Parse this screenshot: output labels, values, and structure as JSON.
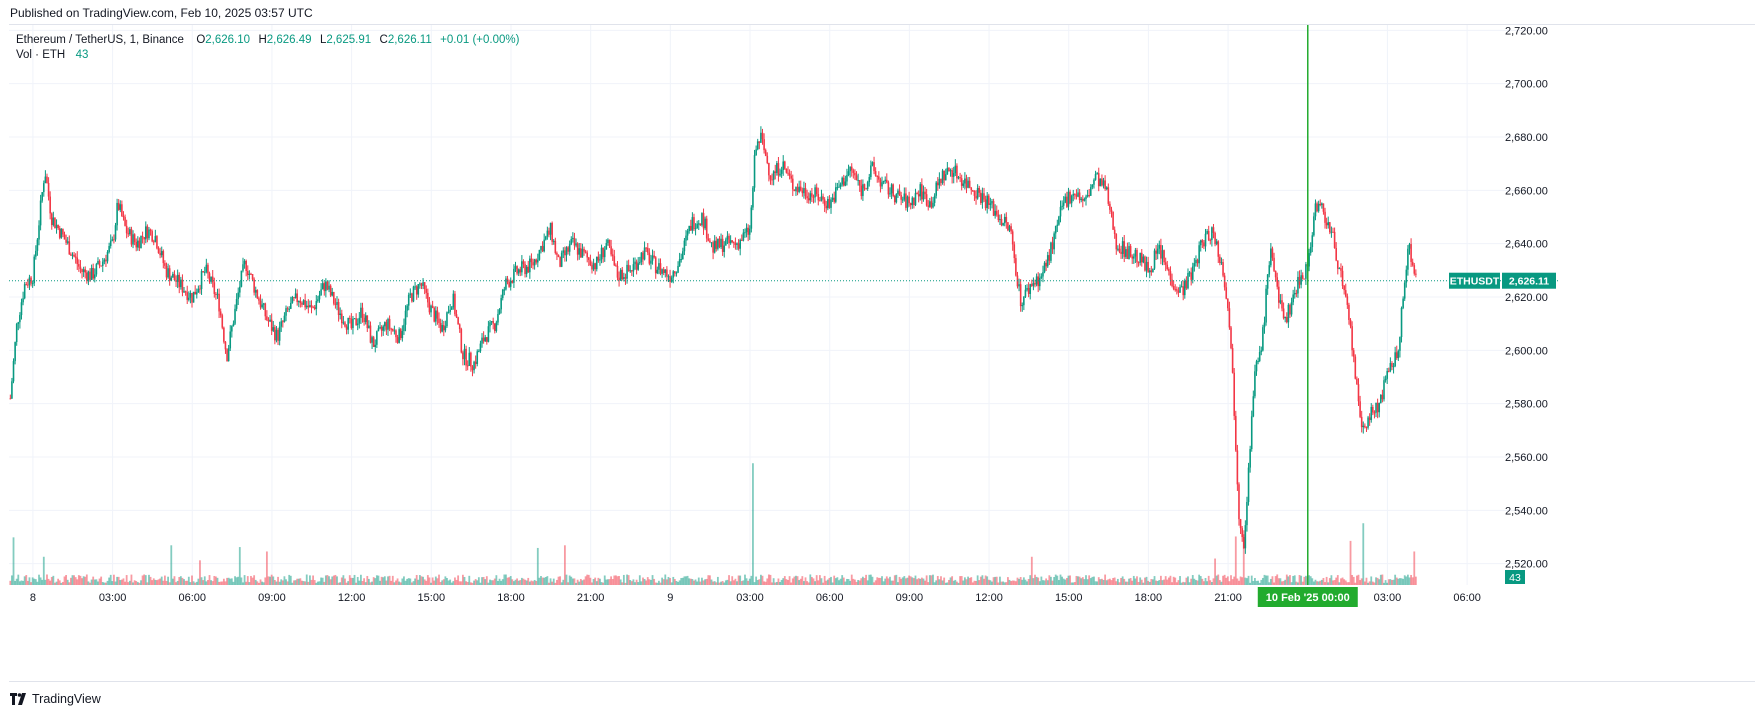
{
  "header": {
    "published": "Published on TradingView.com, Feb 10, 2025 03:57 UTC"
  },
  "legend": {
    "symbol": "Ethereum / TetherUS, 1, Binance",
    "o_label": "O",
    "o": "2,626.10",
    "h_label": "H",
    "h": "2,626.49",
    "l_label": "L",
    "l": "2,625.91",
    "c_label": "C",
    "c": "2,626.11",
    "change": "+0.01 (+0.00%)",
    "vol_label": "Vol · ETH",
    "vol_value": "43"
  },
  "price_tag": {
    "symbol": "ETHUSDT",
    "price": "2,626.11"
  },
  "volume_tag": "43",
  "crosshair_date_label": "10 Feb '25",
  "crosshair_time_label": "00:00",
  "footer": {
    "brand": "TradingView"
  },
  "colors": {
    "up": "#089981",
    "down": "#f23645",
    "crosshair": "#22ab2e",
    "grid": "#f0f3fa",
    "text": "#131722"
  },
  "chart_data": {
    "type": "candlestick",
    "symbol": "ETHUSDT",
    "interval": "1",
    "exchange": "Binance",
    "last_price": 2626.11,
    "y_ticks": [
      2520,
      2540,
      2560,
      2580,
      2600,
      2620,
      2640,
      2660,
      2680,
      2700,
      2720
    ],
    "y_tick_labels": [
      "2,520.00",
      "2,540.00",
      "2,560.00",
      "2,580.00",
      "2,600.00",
      "2,620.00",
      "2,640.00",
      "2,660.00",
      "2,680.00",
      "2,700.00",
      "2,720.00"
    ],
    "ylim": [
      2512,
      2722
    ],
    "x_ticks": [
      {
        "label": "8",
        "h": 0
      },
      {
        "label": "03:00",
        "h": 3
      },
      {
        "label": "06:00",
        "h": 6
      },
      {
        "label": "09:00",
        "h": 9
      },
      {
        "label": "12:00",
        "h": 12
      },
      {
        "label": "15:00",
        "h": 15
      },
      {
        "label": "18:00",
        "h": 18
      },
      {
        "label": "21:00",
        "h": 21
      },
      {
        "label": "9",
        "h": 24
      },
      {
        "label": "03:00",
        "h": 27
      },
      {
        "label": "06:00",
        "h": 30
      },
      {
        "label": "09:00",
        "h": 33
      },
      {
        "label": "12:00",
        "h": 36
      },
      {
        "label": "15:00",
        "h": 39
      },
      {
        "label": "18:00",
        "h": 42
      },
      {
        "label": "21:00",
        "h": 45
      },
      {
        "label": "03:00",
        "h": 51
      },
      {
        "label": "06:00",
        "h": 54
      }
    ],
    "xlim_hours": [
      -0.9,
      55.2
    ],
    "crosshair_hour": 48,
    "price_path": [
      [
        -0.85,
        2582
      ],
      [
        -0.6,
        2610
      ],
      [
        -0.3,
        2625
      ],
      [
        0.0,
        2628
      ],
      [
        0.25,
        2650
      ],
      [
        0.45,
        2668
      ],
      [
        0.7,
        2650
      ],
      [
        1.0,
        2645
      ],
      [
        1.4,
        2638
      ],
      [
        1.8,
        2630
      ],
      [
        2.2,
        2628
      ],
      [
        2.6,
        2633
      ],
      [
        3.0,
        2640
      ],
      [
        3.2,
        2655
      ],
      [
        3.5,
        2645
      ],
      [
        3.9,
        2640
      ],
      [
        4.3,
        2645
      ],
      [
        4.6,
        2643
      ],
      [
        5.0,
        2630
      ],
      [
        5.5,
        2625
      ],
      [
        6.0,
        2620
      ],
      [
        6.5,
        2630
      ],
      [
        7.0,
        2618
      ],
      [
        7.3,
        2598
      ],
      [
        7.8,
        2625
      ],
      [
        8.0,
        2633
      ],
      [
        8.4,
        2622
      ],
      [
        8.8,
        2612
      ],
      [
        9.2,
        2605
      ],
      [
        9.6,
        2615
      ],
      [
        10.0,
        2620
      ],
      [
        10.5,
        2615
      ],
      [
        11.0,
        2625
      ],
      [
        11.5,
        2615
      ],
      [
        12.0,
        2608
      ],
      [
        12.4,
        2615
      ],
      [
        12.8,
        2602
      ],
      [
        13.3,
        2610
      ],
      [
        13.8,
        2605
      ],
      [
        14.2,
        2620
      ],
      [
        14.6,
        2625
      ],
      [
        15.0,
        2615
      ],
      [
        15.4,
        2608
      ],
      [
        15.8,
        2620
      ],
      [
        16.2,
        2598
      ],
      [
        16.6,
        2595
      ],
      [
        17.0,
        2605
      ],
      [
        17.4,
        2610
      ],
      [
        17.8,
        2625
      ],
      [
        18.3,
        2630
      ],
      [
        18.8,
        2632
      ],
      [
        19.2,
        2640
      ],
      [
        19.5,
        2645
      ],
      [
        19.8,
        2632
      ],
      [
        20.3,
        2640
      ],
      [
        20.8,
        2635
      ],
      [
        21.2,
        2632
      ],
      [
        21.6,
        2640
      ],
      [
        22.0,
        2628
      ],
      [
        22.5,
        2630
      ],
      [
        23.0,
        2637
      ],
      [
        23.4,
        2632
      ],
      [
        24.0,
        2628
      ],
      [
        24.4,
        2635
      ],
      [
        24.8,
        2648
      ],
      [
        25.2,
        2650
      ],
      [
        25.6,
        2638
      ],
      [
        26.0,
        2640
      ],
      [
        26.5,
        2640
      ],
      [
        27.0,
        2645
      ],
      [
        27.2,
        2675
      ],
      [
        27.4,
        2680
      ],
      [
        27.8,
        2665
      ],
      [
        28.2,
        2670
      ],
      [
        28.6,
        2662
      ],
      [
        29.0,
        2660
      ],
      [
        29.5,
        2658
      ],
      [
        30.0,
        2655
      ],
      [
        30.4,
        2662
      ],
      [
        30.8,
        2668
      ],
      [
        31.2,
        2660
      ],
      [
        31.6,
        2668
      ],
      [
        32.0,
        2662
      ],
      [
        32.5,
        2658
      ],
      [
        33.0,
        2655
      ],
      [
        33.4,
        2660
      ],
      [
        33.8,
        2655
      ],
      [
        34.2,
        2665
      ],
      [
        34.6,
        2668
      ],
      [
        35.0,
        2664
      ],
      [
        35.5,
        2660
      ],
      [
        36.0,
        2655
      ],
      [
        36.4,
        2650
      ],
      [
        36.8,
        2645
      ],
      [
        37.2,
        2618
      ],
      [
        37.6,
        2625
      ],
      [
        38.0,
        2628
      ],
      [
        38.4,
        2640
      ],
      [
        38.8,
        2655
      ],
      [
        39.2,
        2660
      ],
      [
        39.6,
        2655
      ],
      [
        40.0,
        2665
      ],
      [
        40.4,
        2660
      ],
      [
        40.8,
        2640
      ],
      [
        41.2,
        2637
      ],
      [
        41.6,
        2635
      ],
      [
        42.0,
        2630
      ],
      [
        42.4,
        2638
      ],
      [
        42.8,
        2628
      ],
      [
        43.2,
        2622
      ],
      [
        43.6,
        2628
      ],
      [
        44.0,
        2640
      ],
      [
        44.4,
        2645
      ],
      [
        44.7,
        2635
      ],
      [
        45.0,
        2618
      ],
      [
        45.2,
        2585
      ],
      [
        45.4,
        2540
      ],
      [
        45.6,
        2528
      ],
      [
        45.8,
        2560
      ],
      [
        46.0,
        2590
      ],
      [
        46.3,
        2605
      ],
      [
        46.6,
        2640
      ],
      [
        46.9,
        2618
      ],
      [
        47.2,
        2612
      ],
      [
        47.6,
        2625
      ],
      [
        48.0,
        2632
      ],
      [
        48.3,
        2655
      ],
      [
        48.6,
        2652
      ],
      [
        49.0,
        2640
      ],
      [
        49.3,
        2625
      ],
      [
        49.6,
        2608
      ],
      [
        49.8,
        2590
      ],
      [
        50.0,
        2570
      ],
      [
        50.3,
        2575
      ],
      [
        50.6,
        2578
      ],
      [
        51.0,
        2590
      ],
      [
        51.4,
        2600
      ],
      [
        51.6,
        2620
      ],
      [
        51.8,
        2640
      ],
      [
        52.1,
        2626
      ]
    ],
    "volume_baseline": 8,
    "volume_spikes": [
      {
        "h": -0.75,
        "v": 54
      },
      {
        "h": 0.4,
        "v": 32
      },
      {
        "h": 5.2,
        "v": 45
      },
      {
        "h": 6.3,
        "v": 28
      },
      {
        "h": 7.8,
        "v": 43
      },
      {
        "h": 8.8,
        "v": 38
      },
      {
        "h": 19.0,
        "v": 42
      },
      {
        "h": 20.0,
        "v": 45
      },
      {
        "h": 27.1,
        "v": 138
      },
      {
        "h": 37.6,
        "v": 32
      },
      {
        "h": 44.5,
        "v": 30
      },
      {
        "h": 45.3,
        "v": 55
      },
      {
        "h": 45.6,
        "v": 62
      },
      {
        "h": 49.6,
        "v": 50
      },
      {
        "h": 50.1,
        "v": 70
      },
      {
        "h": 52.0,
        "v": 38
      }
    ],
    "volume_max": 170
  }
}
